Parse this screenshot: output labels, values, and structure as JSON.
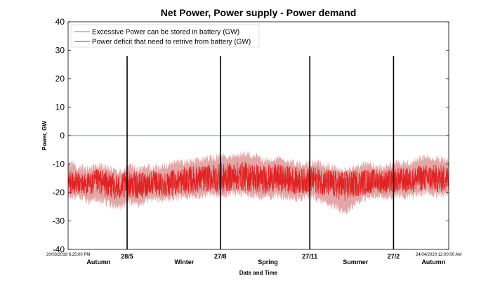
{
  "chart_data": {
    "type": "line",
    "title": "Net Power, Power supply - Power demand",
    "ylabel": "Power, GW",
    "xlabel": "Date and Time",
    "ylim": [
      -40,
      40
    ],
    "yticks": [
      40,
      30,
      20,
      10,
      0,
      -10,
      -20,
      -30,
      -40
    ],
    "x_start_label": "20/03/2019 6:25:00 PM",
    "x_end_label": "24/04/2020 12:00:00 AM",
    "legend_position": "top-left",
    "series": [
      {
        "name": "Excessive Power can be stored in battery (GW)",
        "color": "#5b8fb5",
        "values": [
          0,
          0
        ]
      },
      {
        "name": "Power deficit that need to retrive from battery (GW)",
        "color": "#e11b1b",
        "band_color": "#d98a8a",
        "mean": [
          -16.5,
          -16.8,
          -17.2,
          -16.0,
          -17.5,
          -18.2,
          -17.0,
          -17.8,
          -16.5,
          -17.2,
          -16.8,
          -16.0,
          -15.5,
          -15.2,
          -14.8,
          -15.0,
          -14.5,
          -14.2,
          -14.8,
          -15.5,
          -14.8,
          -15.2,
          -15.8,
          -16.0,
          -15.5,
          -16.5,
          -17.2,
          -17.8,
          -16.8,
          -16.2,
          -15.8,
          -16.5,
          -15.5,
          -15.8,
          -15.0,
          -14.8,
          -15.2,
          -15.0
        ],
        "max": [
          -9.5,
          -11.0,
          -12.0,
          -10.5,
          -11.5,
          -13.0,
          -10.5,
          -12.0,
          -11.0,
          -11.5,
          -10.0,
          -9.5,
          -9.0,
          -8.5,
          -8.0,
          -7.0,
          -7.5,
          -6.5,
          -7.0,
          -8.5,
          -8.0,
          -8.5,
          -9.5,
          -10.0,
          -9.5,
          -10.5,
          -11.5,
          -12.5,
          -11.0,
          -10.0,
          -11.0,
          -10.5,
          -9.5,
          -10.0,
          -8.5,
          -7.5,
          -8.0,
          -9.0
        ],
        "min": [
          -22.0,
          -21.5,
          -23.0,
          -22.5,
          -24.0,
          -25.5,
          -23.0,
          -24.5,
          -22.5,
          -23.0,
          -22.0,
          -21.5,
          -22.0,
          -21.0,
          -20.5,
          -21.5,
          -20.0,
          -20.5,
          -21.0,
          -22.0,
          -21.0,
          -21.5,
          -22.5,
          -21.5,
          -22.0,
          -23.5,
          -25.0,
          -27.0,
          -23.5,
          -22.0,
          -21.5,
          -22.0,
          -21.0,
          -21.5,
          -20.5,
          -20.0,
          -21.0,
          -20.5
        ]
      }
    ],
    "vertical_markers": [
      {
        "label": "28/5",
        "x": 0.155
      },
      {
        "label": "27/8",
        "x": 0.4
      },
      {
        "label": "27/11",
        "x": 0.635
      },
      {
        "label": "27/2",
        "x": 0.855
      }
    ],
    "seasons": [
      {
        "label": "Autumn",
        "x": 0.08
      },
      {
        "label": "Winter",
        "x": 0.305
      },
      {
        "label": "Spring",
        "x": 0.525
      },
      {
        "label": "Summer",
        "x": 0.755
      },
      {
        "label": "Autumn",
        "x": 0.96
      }
    ]
  }
}
